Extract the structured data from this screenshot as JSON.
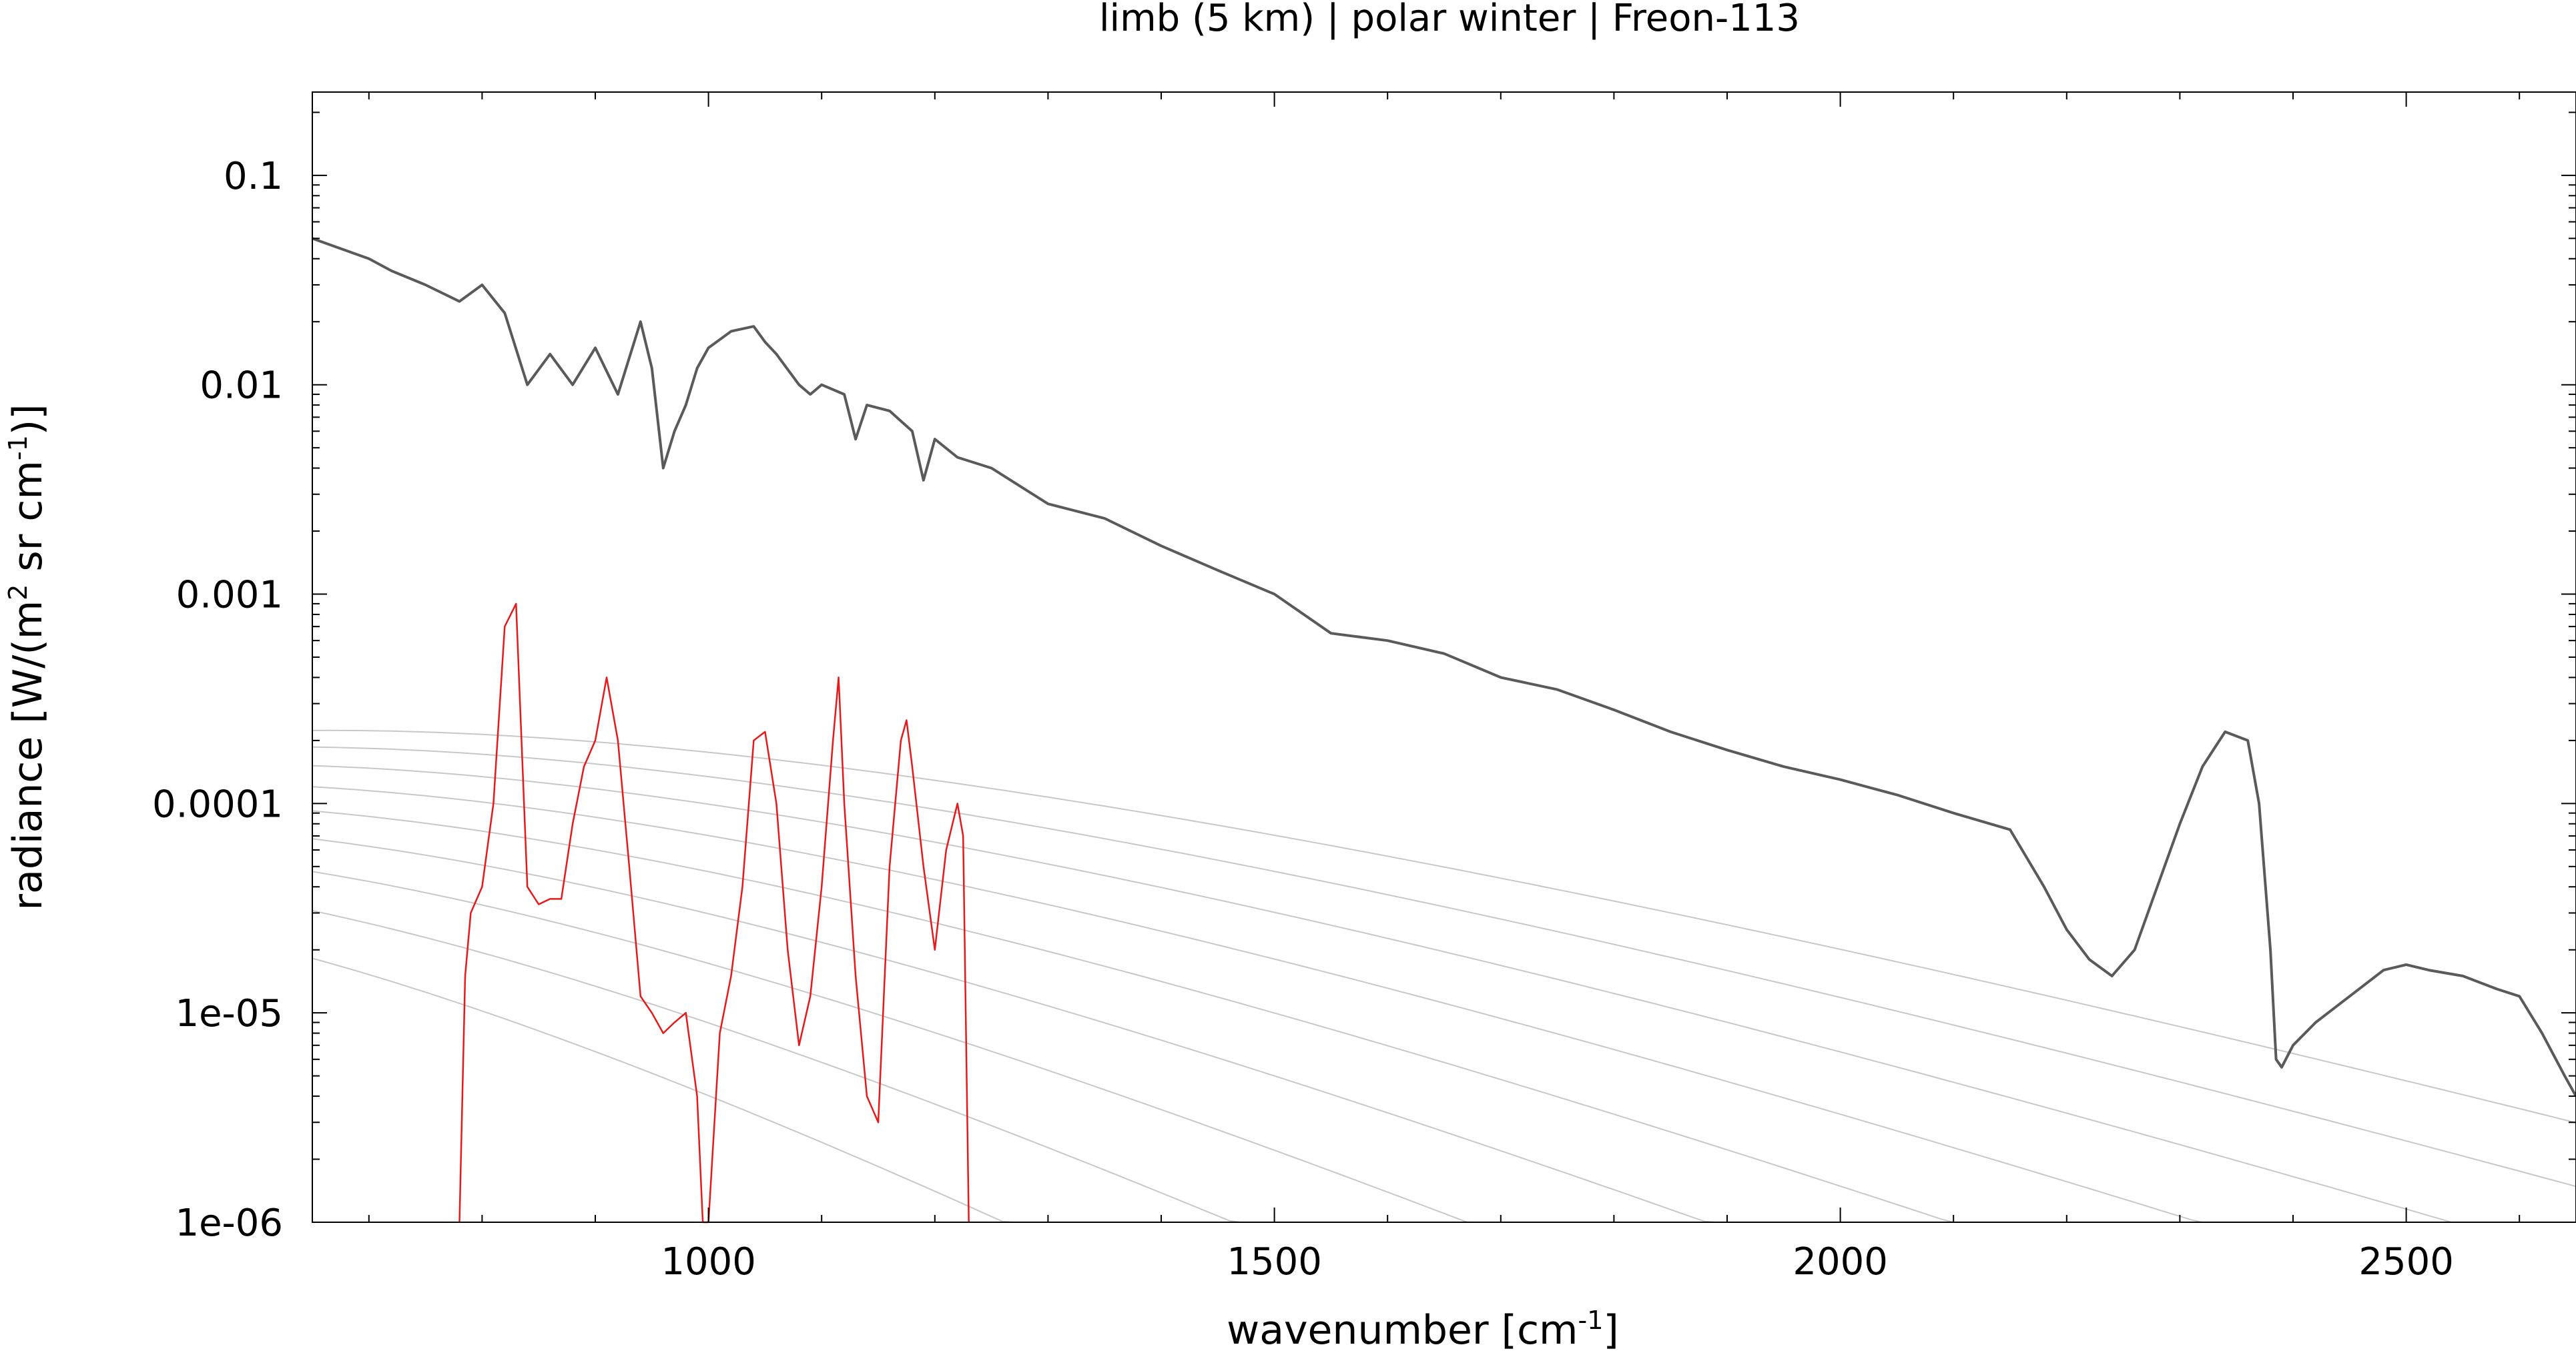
{
  "chart_data": {
    "type": "line",
    "title": "limb (5 km) | polar winter | Freon-113",
    "xlabel": "wavenumber [cm-1]",
    "ylabel": "radiance [W/(m2 sr cm-1)]",
    "xlim": [
      650,
      2650
    ],
    "ylim": [
      1e-06,
      0.25
    ],
    "yscale": "log",
    "grid": false,
    "legend": "none",
    "x_ticks": [
      1000,
      1500,
      2000,
      2500
    ],
    "x_tick_labels": [
      "1000",
      "1500",
      "2000",
      "2500"
    ],
    "y_ticks": [
      0.1,
      0.01,
      0.001,
      0.0001,
      1e-05,
      1e-06
    ],
    "y_tick_labels": [
      "0.1",
      "0.01",
      "0.001",
      "0.0001",
      "1e-05",
      "1e-06"
    ],
    "colors": {
      "background_spectrum": "#5a5a5a",
      "target_gas": "#e8191b",
      "planck": "#c8c8c8",
      "axes": "#000000"
    },
    "planck_temperatures": [
      180,
      200,
      220,
      240,
      260,
      280,
      300,
      320,
      340
    ],
    "series": [
      {
        "color": "#5a5a5a",
        "x": [
          650,
          700,
          720,
          750,
          780,
          800,
          820,
          840,
          860,
          880,
          900,
          920,
          940,
          950,
          960,
          970,
          980,
          990,
          1000,
          1020,
          1040,
          1050,
          1060,
          1080,
          1090,
          1100,
          1120,
          1130,
          1140,
          1160,
          1180,
          1190,
          1200,
          1220,
          1250,
          1300,
          1350,
          1400,
          1450,
          1500,
          1550,
          1600,
          1650,
          1700,
          1750,
          1800,
          1850,
          1900,
          1950,
          2000,
          2050,
          2100,
          2150,
          2180,
          2200,
          2220,
          2240,
          2260,
          2280,
          2300,
          2320,
          2340,
          2360,
          2370,
          2380,
          2385,
          2390,
          2400,
          2420,
          2450,
          2480,
          2500,
          2520,
          2550,
          2580,
          2600,
          2620,
          2640,
          2650
        ],
        "y": [
          0.05,
          0.04,
          0.035,
          0.03,
          0.025,
          0.03,
          0.022,
          0.01,
          0.014,
          0.01,
          0.015,
          0.009,
          0.02,
          0.012,
          0.004,
          0.006,
          0.008,
          0.012,
          0.015,
          0.018,
          0.019,
          0.016,
          0.014,
          0.01,
          0.009,
          0.01,
          0.009,
          0.0055,
          0.008,
          0.0075,
          0.006,
          0.0035,
          0.0055,
          0.0045,
          0.004,
          0.0027,
          0.0023,
          0.0017,
          0.0013,
          0.001,
          0.00065,
          0.0006,
          0.00052,
          0.0004,
          0.00035,
          0.00028,
          0.00022,
          0.00018,
          0.00015,
          0.00013,
          0.00011,
          9e-05,
          7.5e-05,
          4e-05,
          2.5e-05,
          1.8e-05,
          1.5e-05,
          2e-05,
          4e-05,
          8e-05,
          0.00015,
          0.00022,
          0.0002,
          0.0001,
          2e-05,
          6e-06,
          5.5e-06,
          7e-06,
          9e-06,
          1.2e-05,
          1.6e-05,
          1.7e-05,
          1.6e-05,
          1.5e-05,
          1.3e-05,
          1.2e-05,
          8e-06,
          5e-06,
          4e-06
        ]
      },
      {
        "color": "#e8191b",
        "x": [
          780,
          785,
          790,
          800,
          810,
          820,
          830,
          840,
          850,
          860,
          870,
          880,
          890,
          900,
          910,
          920,
          930,
          940,
          950,
          960,
          970,
          980,
          990,
          995,
          1000,
          1010,
          1020,
          1030,
          1040,
          1050,
          1060,
          1070,
          1080,
          1090,
          1100,
          1110,
          1115,
          1120,
          1130,
          1140,
          1150,
          1160,
          1170,
          1175,
          1180,
          1190,
          1200,
          1210,
          1220,
          1225,
          1230
        ],
        "y": [
          1e-06,
          1.5e-05,
          3e-05,
          4e-05,
          0.0001,
          0.0007,
          0.0009,
          4e-05,
          3.3e-05,
          3.5e-05,
          3.5e-05,
          8e-05,
          0.00015,
          0.0002,
          0.0004,
          0.0002,
          5e-05,
          1.2e-05,
          1e-05,
          8e-06,
          9e-06,
          1e-05,
          4e-06,
          1e-06,
          1e-06,
          8e-06,
          1.5e-05,
          4e-05,
          0.0002,
          0.00022,
          0.0001,
          2e-05,
          7e-06,
          1.2e-05,
          4e-05,
          0.0002,
          0.0004,
          0.0001,
          1.5e-05,
          4e-06,
          3e-06,
          5e-05,
          0.0002,
          0.00025,
          0.00015,
          5e-05,
          2e-05,
          6e-05,
          0.0001,
          7e-05,
          1e-06
        ]
      }
    ]
  }
}
